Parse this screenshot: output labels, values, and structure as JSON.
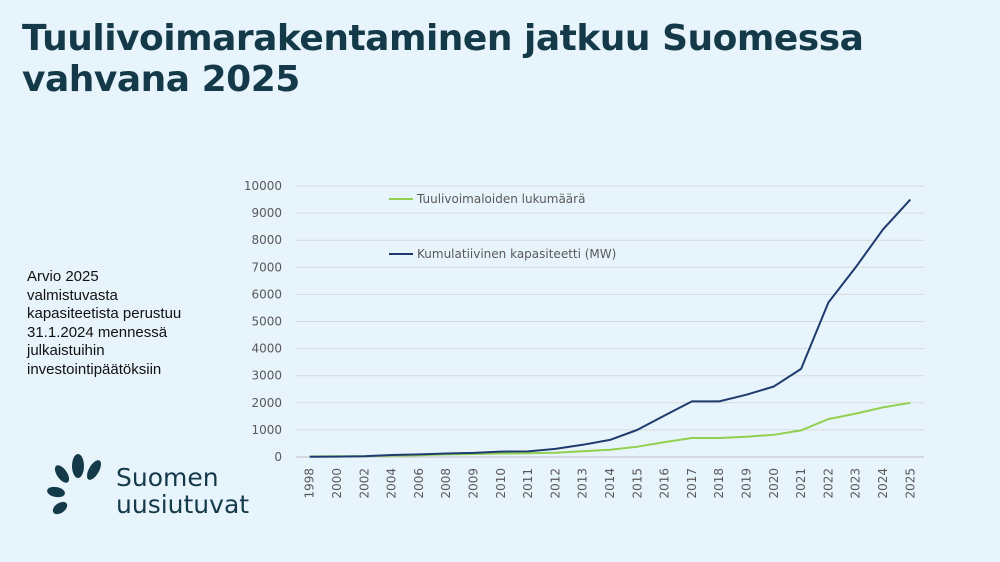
{
  "title_lines": [
    "Tuulivoimarakentaminen jatkuu Suomessa",
    "vahvana 2025"
  ],
  "note_lines": [
    "Arvio  2025",
    "valmistuvasta",
    "kapasiteetista perustuu",
    "31.1.2024 mennessä",
    "julkaistuihin",
    "investointipäätöksiin"
  ],
  "logo": {
    "line1": "Suomen",
    "line2": "uusiutuvat",
    "color": "#143a4a",
    "icon": "leaf-cluster-icon"
  },
  "chart_data": {
    "type": "line",
    "categories": [
      "1998",
      "2000",
      "2002",
      "2004",
      "2006",
      "2008",
      "2009",
      "2010",
      "2011",
      "2012",
      "2013",
      "2014",
      "2015",
      "2016",
      "2017",
      "2018",
      "2019",
      "2020",
      "2021",
      "2022",
      "2023",
      "2024",
      "2025"
    ],
    "series": [
      {
        "name": "Tuulivoimaloiden lukumäärä",
        "color": "#92d050",
        "values": [
          20,
          25,
          30,
          50,
          65,
          95,
          110,
          130,
          135,
          160,
          215,
          270,
          380,
          550,
          700,
          700,
          750,
          820,
          980,
          1400,
          1600,
          1830,
          2000
        ]
      },
      {
        "name": "Kumulatiivinen kapasiteetti (MW)",
        "color": "#1f3b6e",
        "values": [
          10,
          15,
          30,
          75,
          95,
          130,
          150,
          200,
          205,
          300,
          450,
          630,
          1000,
          1530,
          2050,
          2050,
          2300,
          2600,
          3250,
          5700,
          7000,
          8400,
          9500
        ]
      }
    ],
    "ylim": [
      0,
      10000
    ],
    "yticks": [
      0,
      1000,
      2000,
      3000,
      4000,
      5000,
      6000,
      7000,
      8000,
      9000,
      10000
    ],
    "grid": true,
    "legend_position": "top-left inside plot"
  }
}
